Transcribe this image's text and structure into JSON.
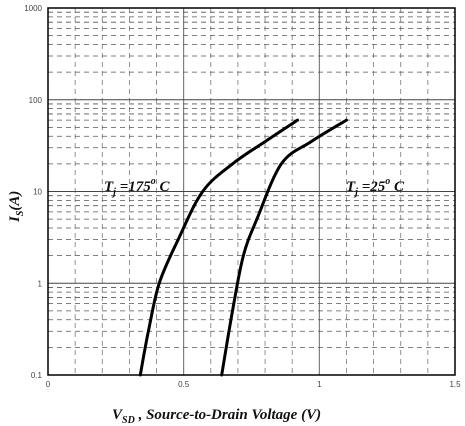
{
  "chart_data": {
    "type": "line",
    "title": "",
    "xlabel": {
      "main": "V",
      "sub": "SD",
      "rest": " , Source-to-Drain Voltage (V)"
    },
    "ylabel": {
      "main": "I",
      "sub": "S",
      "rest": "(A)"
    },
    "x_axis": {
      "scale": "linear",
      "range": [
        0,
        1.5
      ],
      "ticks": [
        0,
        0.5,
        1,
        1.5
      ],
      "tick_labels": [
        "0",
        "0.5",
        "1",
        "1.5"
      ],
      "minor_step": 0.1
    },
    "y_axis": {
      "scale": "log",
      "range": [
        0.1,
        1000
      ],
      "ticks": [
        0.1,
        1,
        10,
        100,
        1000
      ],
      "tick_labels": [
        "0.1",
        "1",
        "10",
        "100",
        "1000"
      ]
    },
    "grid": true,
    "series": [
      {
        "name": "Tj=175°C",
        "x": [
          0.34,
          0.37,
          0.41,
          0.48,
          0.57,
          0.68,
          0.8,
          0.92
        ],
        "y": [
          0.1,
          0.3,
          1,
          3,
          10,
          20,
          35,
          60
        ]
      },
      {
        "name": "Tj=25°C",
        "x": [
          0.64,
          0.68,
          0.72,
          0.77,
          0.86,
          0.97,
          1.1
        ],
        "y": [
          0.1,
          0.5,
          2,
          5,
          20,
          35,
          60
        ]
      }
    ],
    "annotations": [
      {
        "main": "T",
        "sub": "j",
        "rest": " =175",
        "sup": "o",
        "tail": " C"
      },
      {
        "main": "T",
        "sub": "j",
        "rest": " =25",
        "sup": "o",
        "tail": " C"
      }
    ]
  }
}
